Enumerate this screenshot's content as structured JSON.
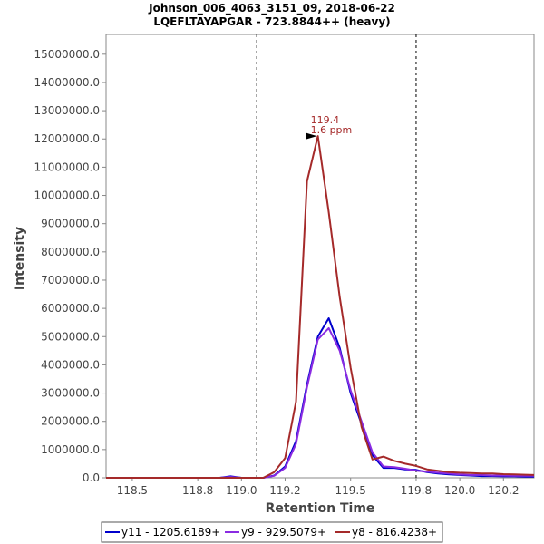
{
  "chart_data": {
    "type": "line",
    "title": "Johnson_006_4063_3151_09, 2018-06-22",
    "subtitle": "LQEFLTAYAPGAR - 723.8844++ (heavy)",
    "xlabel": "Retention Time",
    "ylabel": "Intensity",
    "xlim": [
      118.38,
      120.34
    ],
    "ylim": [
      0,
      15700000
    ],
    "x_ticks": [
      118.5,
      118.8,
      119.0,
      119.2,
      119.5,
      119.8,
      120.0,
      120.2
    ],
    "x_tick_labels": [
      "118.5",
      "118.8",
      "119.0",
      "119.2",
      "119.5",
      "119.8",
      "120.0",
      "120.2"
    ],
    "y_ticks": [
      0,
      1000000,
      2000000,
      3000000,
      4000000,
      5000000,
      6000000,
      7000000,
      8000000,
      9000000,
      10000000,
      11000000,
      12000000,
      13000000,
      14000000,
      15000000
    ],
    "y_tick_labels": [
      "0.0",
      "1000000.0",
      "2000000.0",
      "3000000.0",
      "4000000.0",
      "5000000.0",
      "6000000.0",
      "7000000.0",
      "8000000.0",
      "9000000.0",
      "10000000.0",
      "11000000.0",
      "12000000.0",
      "13000000.0",
      "14000000.0",
      "15000000.0"
    ],
    "integration_bounds": [
      119.07,
      119.8
    ],
    "annotation": {
      "x": 119.35,
      "y": 12100000,
      "line1": "119.4",
      "line2": "1.6 ppm"
    },
    "legend_position": "bottom-center",
    "series": [
      {
        "name": "y11 - 1205.6189+",
        "color": "#0000cc",
        "x": [
          118.38,
          118.9,
          118.95,
          119.0,
          119.05,
          119.1,
          119.15,
          119.2,
          119.25,
          119.3,
          119.35,
          119.4,
          119.45,
          119.5,
          119.55,
          119.6,
          119.65,
          119.7,
          119.75,
          119.8,
          119.85,
          119.9,
          119.95,
          120.0,
          120.05,
          120.1,
          120.15,
          120.2,
          120.25,
          120.3,
          120.34
        ],
        "y": [
          0,
          0,
          50000,
          0,
          0,
          0,
          80000,
          400000,
          1300000,
          3300000,
          5000000,
          5650000,
          4600000,
          3000000,
          1900000,
          800000,
          350000,
          350000,
          300000,
          280000,
          200000,
          150000,
          120000,
          100000,
          80000,
          60000,
          60000,
          50000,
          50000,
          40000,
          40000
        ]
      },
      {
        "name": "y9 - 929.5079+",
        "color": "#8a2be2",
        "x": [
          118.38,
          118.9,
          118.95,
          119.0,
          119.05,
          119.1,
          119.15,
          119.2,
          119.25,
          119.3,
          119.35,
          119.4,
          119.45,
          119.5,
          119.55,
          119.6,
          119.65,
          119.7,
          119.75,
          119.8,
          119.85,
          119.9,
          119.95,
          120.0,
          120.05,
          120.1,
          120.15,
          120.2,
          120.25,
          120.3,
          120.34
        ],
        "y": [
          0,
          0,
          30000,
          0,
          0,
          0,
          70000,
          350000,
          1200000,
          3200000,
          4900000,
          5300000,
          4500000,
          3100000,
          2000000,
          900000,
          400000,
          380000,
          320000,
          250000,
          220000,
          180000,
          150000,
          120000,
          100000,
          100000,
          80000,
          80000,
          70000,
          70000,
          70000
        ]
      },
      {
        "name": "y8 - 816.4238+",
        "color": "#a52a2a",
        "x": [
          118.38,
          118.9,
          118.95,
          119.0,
          119.05,
          119.1,
          119.15,
          119.2,
          119.25,
          119.3,
          119.35,
          119.4,
          119.45,
          119.5,
          119.55,
          119.6,
          119.65,
          119.7,
          119.75,
          119.8,
          119.85,
          119.9,
          119.95,
          120.0,
          120.05,
          120.1,
          120.15,
          120.2,
          120.25,
          120.3,
          120.34
        ],
        "y": [
          0,
          0,
          0,
          0,
          0,
          0,
          200000,
          700000,
          2700000,
          10500000,
          12100000,
          9400000,
          6400000,
          3900000,
          1800000,
          650000,
          750000,
          600000,
          500000,
          420000,
          300000,
          250000,
          200000,
          180000,
          170000,
          150000,
          150000,
          130000,
          120000,
          110000,
          100000
        ]
      }
    ]
  }
}
